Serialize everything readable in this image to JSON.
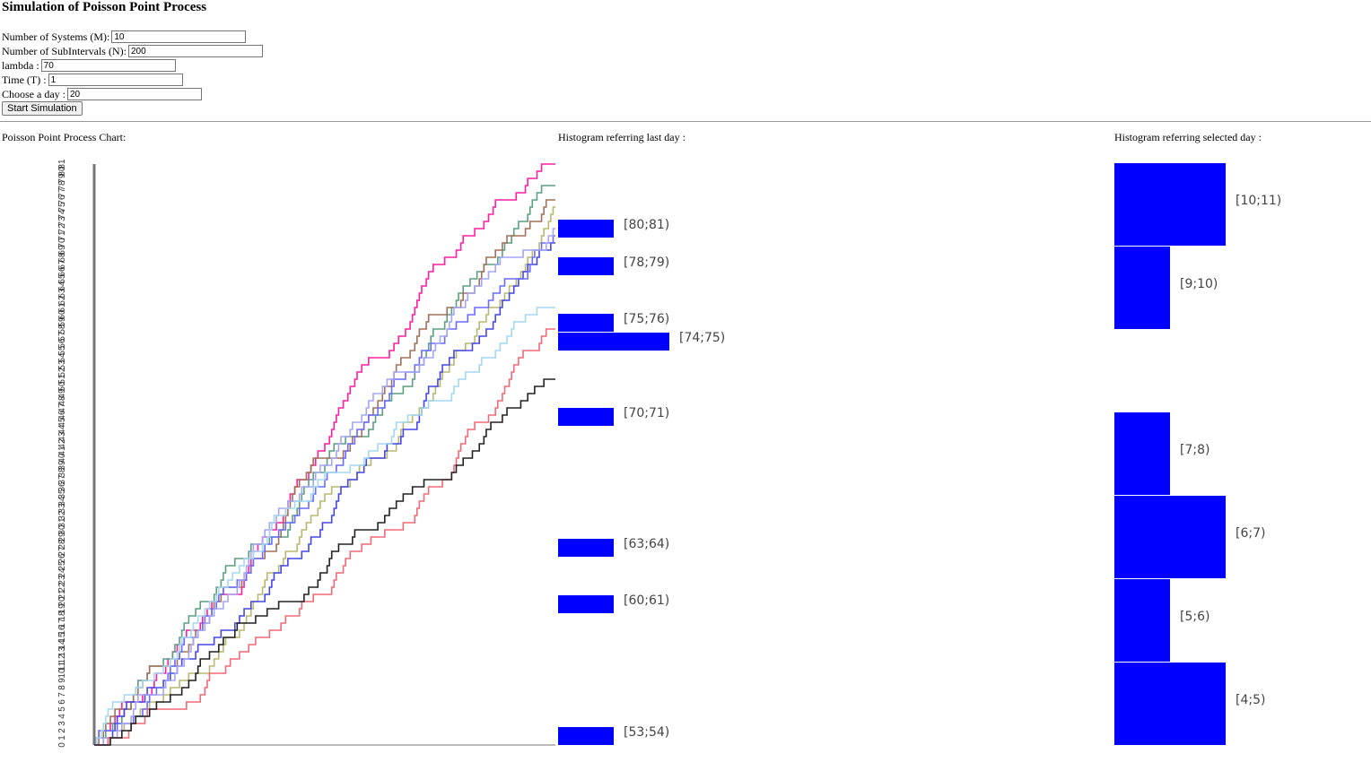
{
  "page": {
    "title": "Simulation of Poisson Point Process"
  },
  "form": {
    "systems_label": "Number of Systems (M):",
    "systems_value": "10",
    "subintervals_label": "Number of SubIntervals (N):",
    "subintervals_value": "200",
    "lambda_label": "lambda :",
    "lambda_value": "70",
    "time_label": "Time (T) :",
    "time_value": "1",
    "day_label": "Choose a day :",
    "day_value": "20",
    "start_button": "Start Simulation"
  },
  "panels": {
    "chart_label": "Poisson Point Process Chart:",
    "hist_last_label": "Histogram referring last day :",
    "hist_selected_label": "Histogram referring selected day :"
  },
  "chart_data": [
    {
      "type": "line",
      "title": "",
      "x": {
        "range": [
          0,
          200
        ]
      },
      "y": {
        "range": [
          0,
          81
        ]
      },
      "series": [
        {
          "color": "#ff1ea0",
          "final": 81
        },
        {
          "color": "#5b9f80",
          "final": 78
        },
        {
          "color": "#a0705a",
          "final": 76
        },
        {
          "color": "#b8b870",
          "final": 75
        },
        {
          "color": "#4646e6",
          "final": 70
        },
        {
          "color": "#6a6aff",
          "final": 71
        },
        {
          "color": "#a5a5f5",
          "final": 72
        },
        {
          "color": "#a3d8f0",
          "final": 61
        },
        {
          "color": "#f06a78",
          "final": 58
        },
        {
          "color": "#222222",
          "final": 51
        }
      ]
    },
    {
      "type": "bar",
      "orientation": "horizontal",
      "categories": [
        "[80;81)",
        "[78;79)",
        "[75;76)",
        "[74;75)",
        "[70;71)",
        "[63;64)",
        "[60;61)",
        "[53;54)"
      ],
      "values": [
        1,
        1,
        1,
        2,
        1,
        1,
        1,
        1
      ],
      "color": "#0000ff"
    },
    {
      "type": "bar",
      "orientation": "horizontal",
      "categories": [
        "[10;11)",
        "[9;10)",
        "[7;8)",
        "[6;7)",
        "[5;6)",
        "[4;5)"
      ],
      "values": [
        2,
        1,
        1,
        2,
        1,
        2
      ],
      "color": "#0000ff"
    }
  ]
}
